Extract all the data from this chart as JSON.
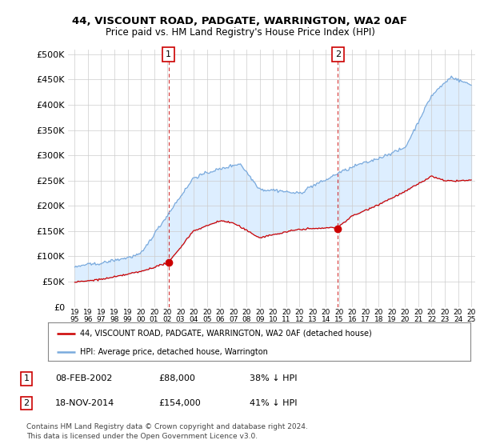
{
  "title_line1": "44, VISCOUNT ROAD, PADGATE, WARRINGTON, WA2 0AF",
  "title_line2": "Price paid vs. HM Land Registry's House Price Index (HPI)",
  "ytick_values": [
    0,
    50000,
    100000,
    150000,
    200000,
    250000,
    300000,
    350000,
    400000,
    450000,
    500000
  ],
  "ylim": [
    0,
    510000
  ],
  "xlim_start": 1994.5,
  "xlim_end": 2025.3,
  "hpi_color": "#7aaadd",
  "fill_color": "#ddeeff",
  "price_color": "#cc0000",
  "vline_color": "#cc0000",
  "marker1_x": 2002.1,
  "marker1_y": 88000,
  "marker2_x": 2014.9,
  "marker2_y": 154000,
  "legend_label1": "44, VISCOUNT ROAD, PADGATE, WARRINGTON, WA2 0AF (detached house)",
  "legend_label2": "HPI: Average price, detached house, Warrington",
  "table_rows": [
    {
      "num": "1",
      "date": "08-FEB-2002",
      "price": "£88,000",
      "pct": "38% ↓ HPI"
    },
    {
      "num": "2",
      "date": "18-NOV-2014",
      "price": "£154,000",
      "pct": "41% ↓ HPI"
    }
  ],
  "footnote1": "Contains HM Land Registry data © Crown copyright and database right 2024.",
  "footnote2": "This data is licensed under the Open Government Licence v3.0.",
  "background_color": "#ffffff",
  "grid_color": "#cccccc",
  "chart_bg": "#f8f8f8"
}
